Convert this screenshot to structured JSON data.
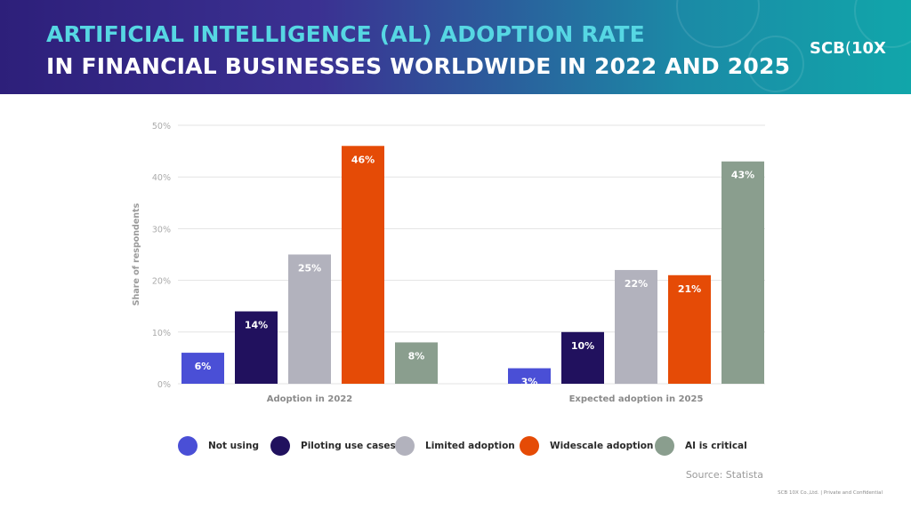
{
  "header": {
    "title_line1": "ARTIFICIAL INTELLIGENCE (AL) ADOPTION RATE",
    "title_line2": "IN FINANCIAL BUSINESSES WORLDWIDE IN 2022 AND 2025",
    "logo_left": "SCB",
    "logo_right": "10X"
  },
  "chart_data": {
    "type": "bar",
    "title": "",
    "ylabel": "Share of respondents",
    "xlabel": "",
    "ylim": [
      0,
      50
    ],
    "yticks": [
      "0%",
      "10%",
      "20%",
      "30%",
      "40%",
      "50%"
    ],
    "categories": [
      "Adoption in 2022",
      "Expected adoption in 2025"
    ],
    "series": [
      {
        "name": "Not using",
        "color": "#4a4fd6",
        "values": [
          6,
          3
        ],
        "labels": [
          "6%",
          "3%"
        ]
      },
      {
        "name": "Piloting use cases",
        "color": "#21115e",
        "values": [
          14,
          10
        ],
        "labels": [
          "14%",
          "10%"
        ]
      },
      {
        "name": "Limited adoption",
        "color": "#b2b2bd",
        "values": [
          25,
          22
        ],
        "labels": [
          "25%",
          "22%"
        ]
      },
      {
        "name": "Widescale adoption",
        "color": "#e54b06",
        "values": [
          46,
          21
        ],
        "labels": [
          "46%",
          "21%"
        ]
      },
      {
        "name": "AI is critical",
        "color": "#8a9e8e",
        "values": [
          8,
          43
        ],
        "labels": [
          "8%",
          "43%"
        ]
      }
    ],
    "grid": true,
    "legend_position": "bottom"
  },
  "source": "Source: Statista",
  "footer": "SCB 10X Co.,Ltd. | Private and Confidential"
}
